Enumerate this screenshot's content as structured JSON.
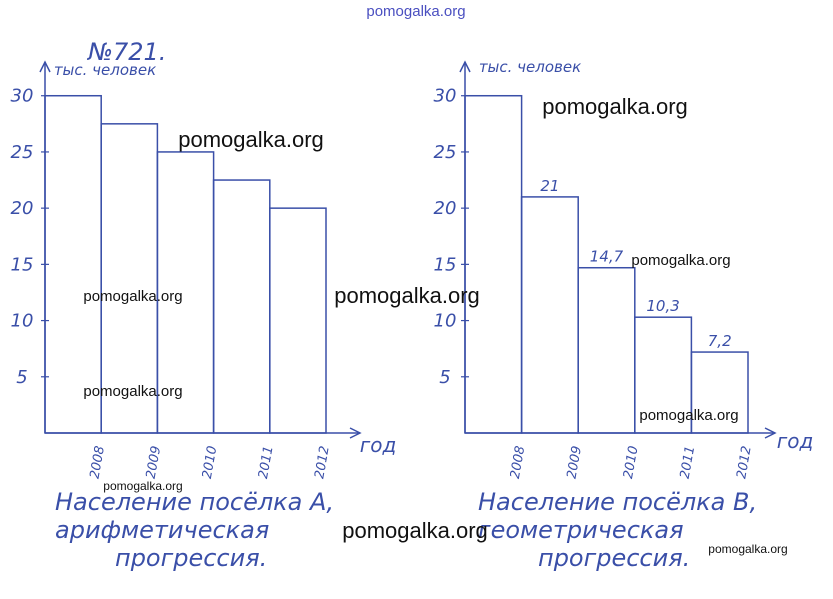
{
  "problem_number": "№721.",
  "chart_data": [
    {
      "type": "bar",
      "y_label": "тыс. человек",
      "x_label": "год",
      "categories": [
        "2008",
        "2009",
        "2010",
        "2011",
        "2012"
      ],
      "values": [
        30,
        27.5,
        25,
        22.5,
        20
      ],
      "color": "#3a4fa8",
      "ylim": [
        0,
        33
      ],
      "yticks": [
        5,
        10,
        15,
        20,
        25,
        30
      ],
      "caption": [
        "Население посёлка А,",
        "арифметическая",
        "прогрессия."
      ]
    },
    {
      "type": "bar",
      "y_label": "тыс. человек",
      "x_label": "год",
      "categories": [
        "2008",
        "2009",
        "2010",
        "2011",
        "2012"
      ],
      "values": [
        30,
        21,
        14.7,
        10.3,
        7.2
      ],
      "value_labels": [
        null,
        "21",
        "14,7",
        "10,3",
        "7,2"
      ],
      "color": "#3a4fa8",
      "ylim": [
        0,
        33
      ],
      "yticks": [
        5,
        10,
        15,
        20,
        25,
        30
      ],
      "caption": [
        "Население посёлка В,",
        "геометрическая",
        "прогрессия."
      ]
    }
  ],
  "watermarks": [
    "pomogalka.org",
    "pomogalka.org",
    "pomogalka.org",
    "pomogalka.org",
    "pomogalka.org",
    "pomogalka.org",
    "pomogalka.org",
    "pomogalka.org",
    "pomogalka.org",
    "pomogalka.org",
    "pomogalka.org"
  ]
}
